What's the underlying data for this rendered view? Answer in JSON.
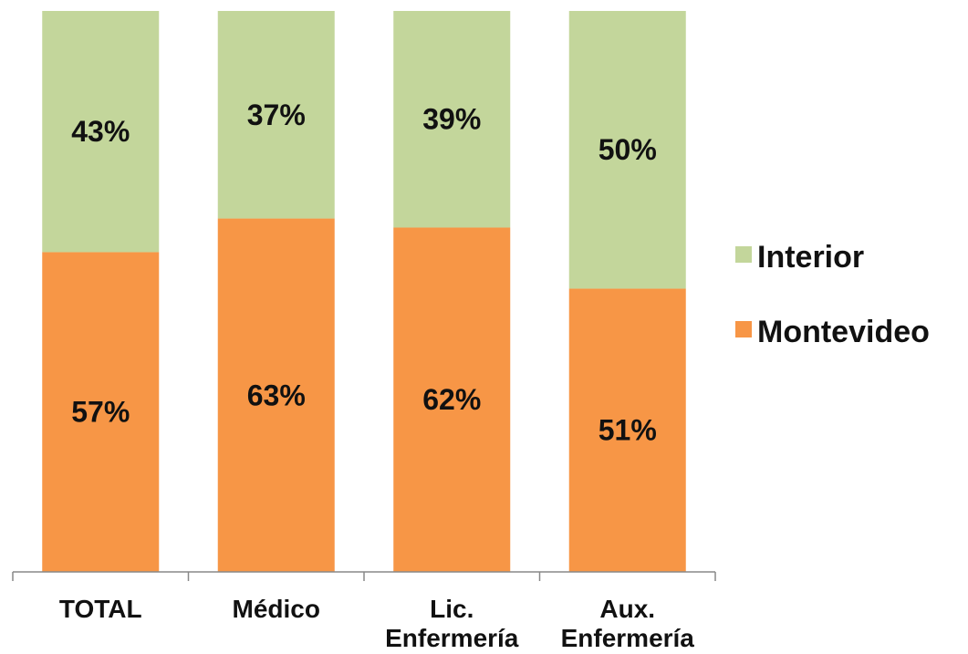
{
  "chart_data": {
    "type": "bar",
    "stacked": true,
    "categories": [
      [
        "TOTAL"
      ],
      [
        "Médico"
      ],
      [
        "Lic.",
        "Enfermería"
      ],
      [
        "Aux.",
        "Enfermería"
      ]
    ],
    "series": [
      {
        "name": "Montevideo",
        "values": [
          57,
          63,
          62,
          51
        ],
        "labels": [
          "57%",
          "63%",
          "62%",
          "51%"
        ]
      },
      {
        "name": "Interior",
        "values": [
          43,
          37,
          39,
          50
        ],
        "labels": [
          "43%",
          "37%",
          "39%",
          "50%"
        ]
      }
    ],
    "ylim": [
      0,
      100
    ],
    "grid": false,
    "legend_position": "right",
    "legend_order": [
      "Interior",
      "Montevideo"
    ]
  },
  "colors": {
    "Montevideo": "#F79646",
    "Interior": "#C3D69B",
    "axis": "#888888"
  }
}
